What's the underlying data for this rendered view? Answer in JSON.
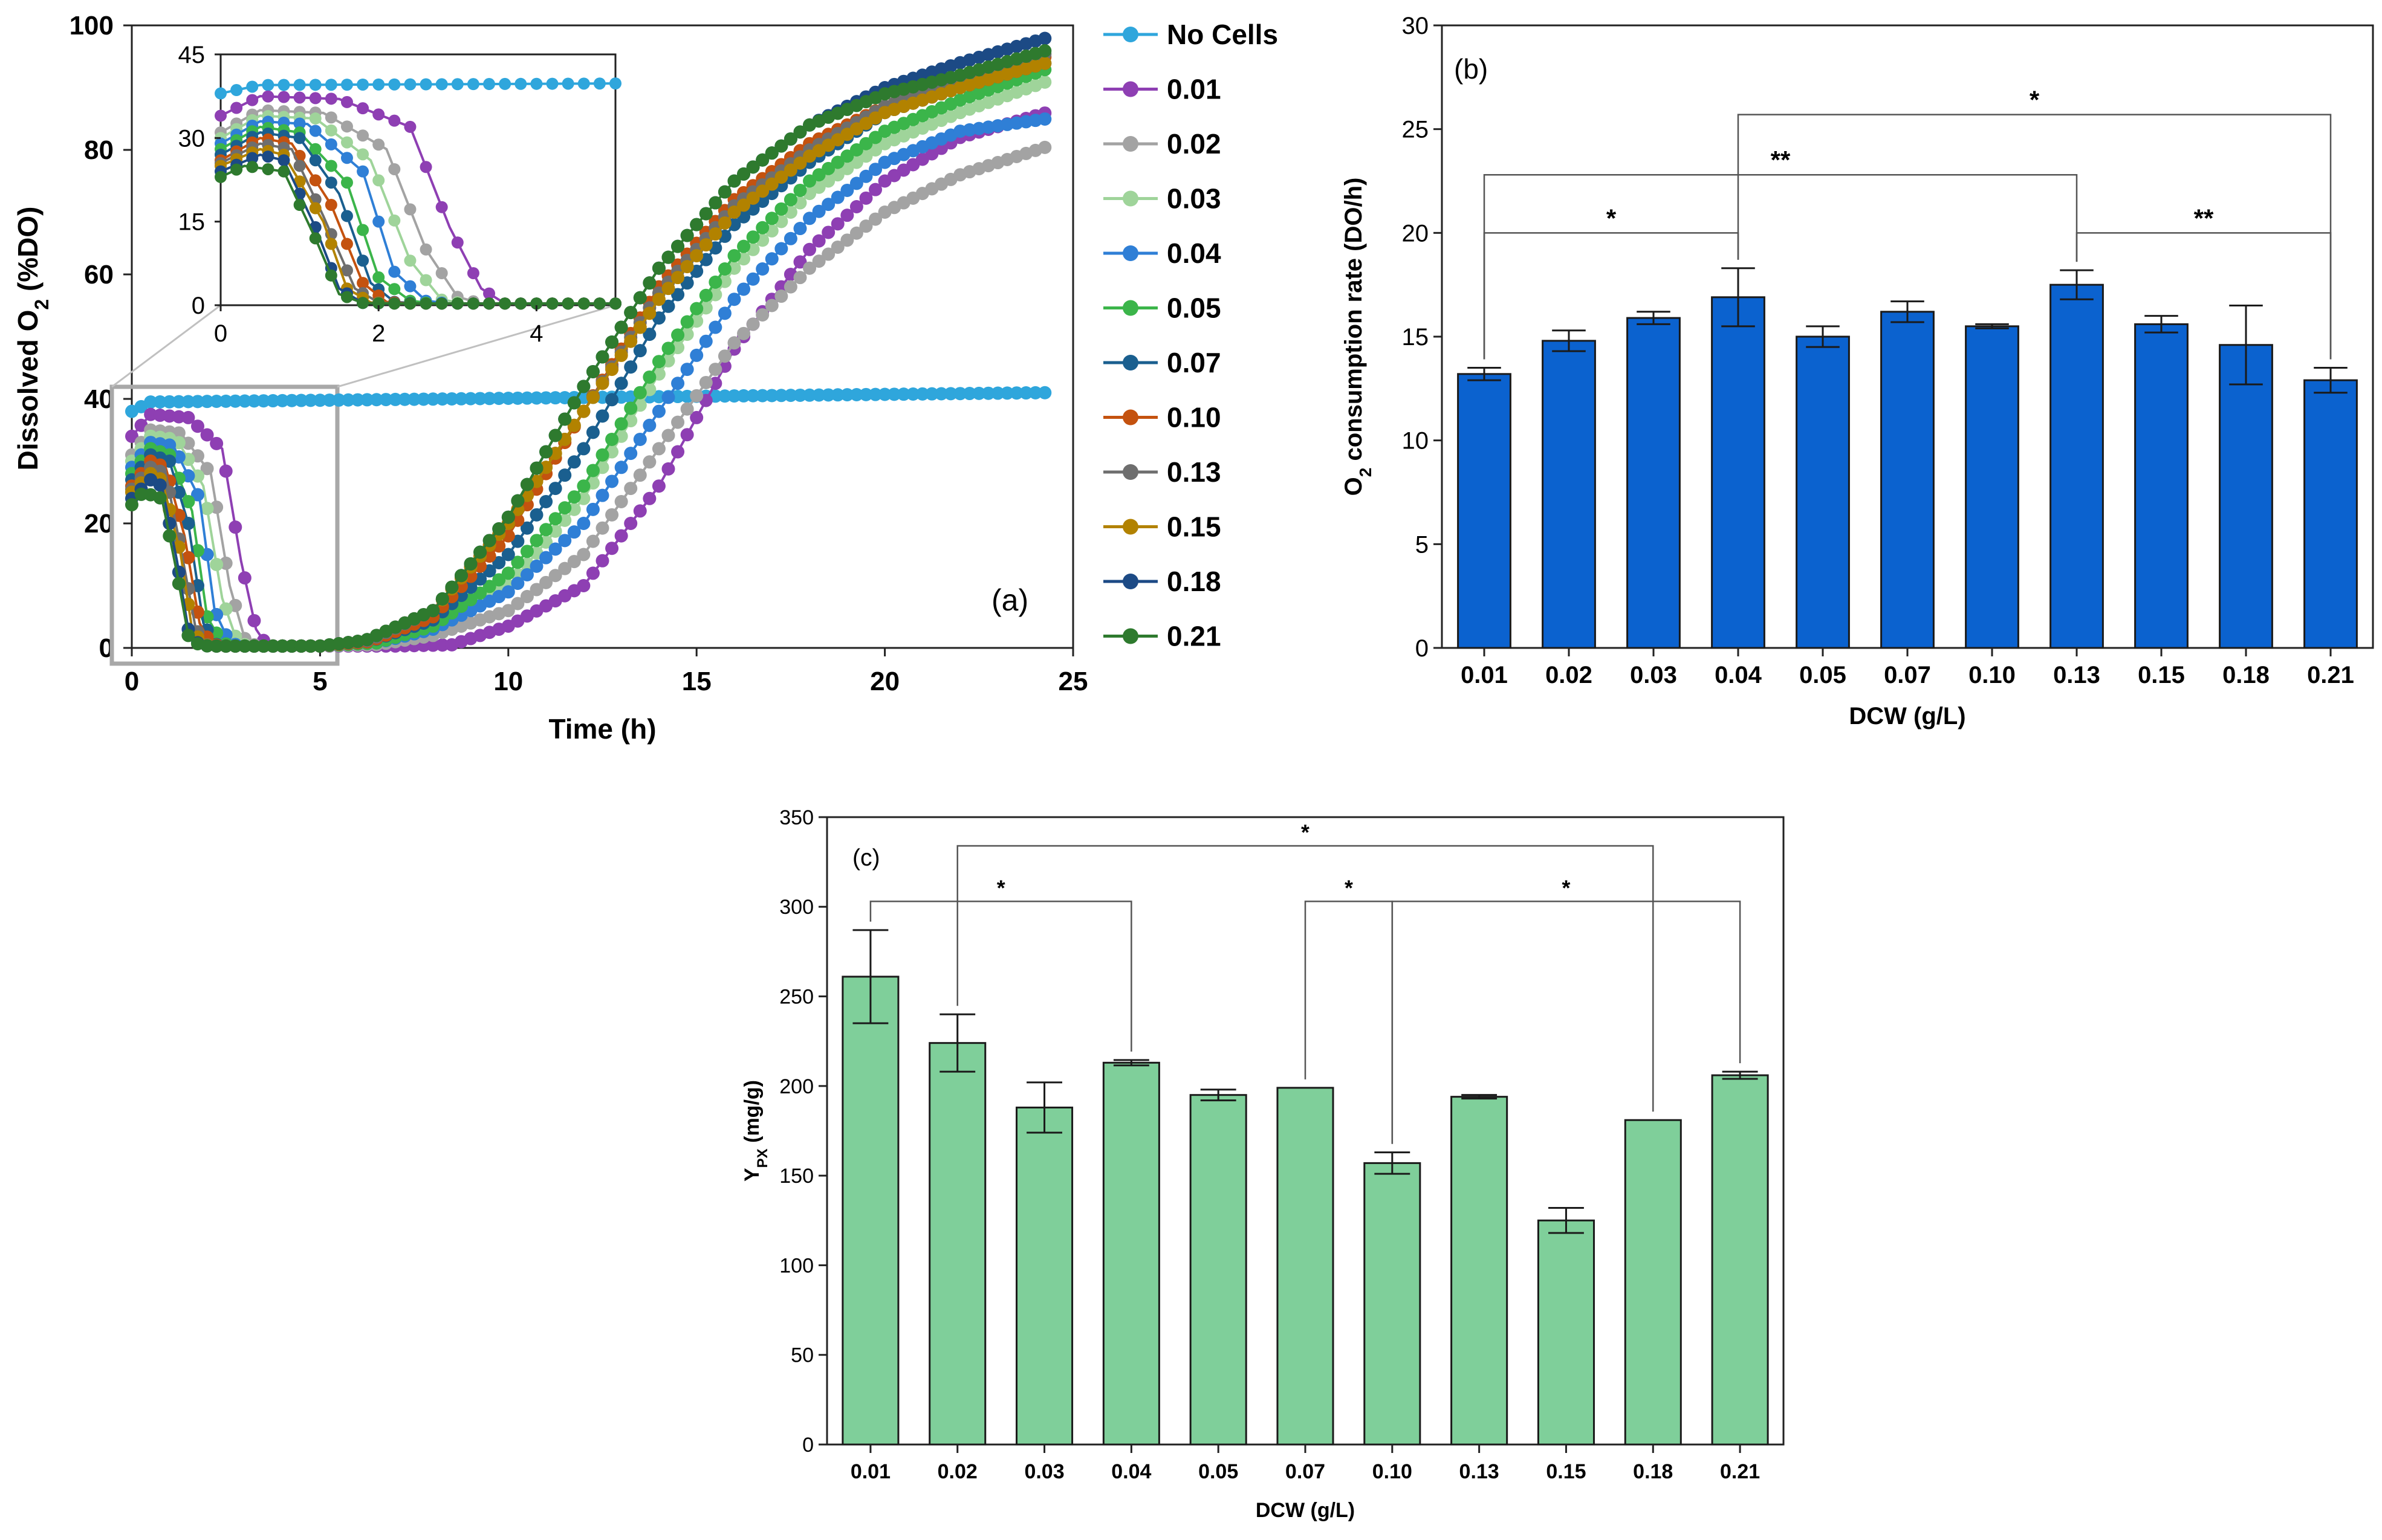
{
  "chart_data": [
    {
      "panel": "(a)",
      "type": "line",
      "xlabel": "Time (h)",
      "ylabel": "Dissolved O",
      "ylabel_sub": "2",
      "ylabel_tail": " (%DO)",
      "xlim": [
        0,
        25
      ],
      "ylim": [
        0,
        100
      ],
      "xticks": [
        0,
        5,
        10,
        15,
        20,
        25
      ],
      "yticks": [
        0,
        20,
        40,
        60,
        80,
        100
      ],
      "grid": false,
      "legend_position": "right",
      "series": [
        {
          "name": "No Cells",
          "color": "#2fa6dc",
          "points": [
            [
              0,
              38
            ],
            [
              0.5,
              39.5
            ],
            [
              24.3,
              41
            ]
          ]
        },
        {
          "name": "0.01",
          "color": "#8e3fb3",
          "points": [
            [
              0,
              34
            ],
            [
              0.5,
              37.5
            ],
            [
              1.5,
              37
            ],
            [
              2.4,
              32
            ],
            [
              2.9,
              14
            ],
            [
              3.3,
              3
            ],
            [
              3.6,
              0.3
            ],
            [
              5,
              0.3
            ],
            [
              7,
              0.3
            ],
            [
              8.5,
              0.5
            ],
            [
              10,
              3.5
            ],
            [
              12,
              10
            ],
            [
              14,
              26
            ],
            [
              16,
              48
            ],
            [
              18,
              64
            ],
            [
              20,
              75
            ],
            [
              22,
              82
            ],
            [
              24.3,
              86
            ]
          ]
        },
        {
          "name": "0.02",
          "color": "#a3a3a3",
          "points": [
            [
              0,
              31
            ],
            [
              0.5,
              35
            ],
            [
              1.3,
              34.5
            ],
            [
              2.1,
              28
            ],
            [
              2.6,
              10
            ],
            [
              3,
              1.5
            ],
            [
              3.3,
              0.3
            ],
            [
              5,
              0.3
            ],
            [
              6.5,
              0.5
            ],
            [
              8,
              2
            ],
            [
              10,
              6
            ],
            [
              12,
              15
            ],
            [
              14,
              32
            ],
            [
              16,
              49
            ],
            [
              18,
              61
            ],
            [
              20,
              70
            ],
            [
              22,
              76
            ],
            [
              24.3,
              80.5
            ]
          ]
        },
        {
          "name": "0.03",
          "color": "#9fd49a",
          "points": [
            [
              0,
              30
            ],
            [
              0.5,
              34
            ],
            [
              1.2,
              33.5
            ],
            [
              1.9,
              26
            ],
            [
              2.4,
              8
            ],
            [
              2.8,
              1
            ],
            [
              3.1,
              0.3
            ],
            [
              5,
              0.3
            ],
            [
              6.5,
              1
            ],
            [
              8,
              3
            ],
            [
              10,
              10
            ],
            [
              12,
              24
            ],
            [
              14,
              44
            ],
            [
              16,
              61
            ],
            [
              18,
              73
            ],
            [
              20,
              81
            ],
            [
              22,
              86
            ],
            [
              24.3,
              91
            ]
          ]
        },
        {
          "name": "0.04",
          "color": "#2f7fd6",
          "points": [
            [
              0,
              29
            ],
            [
              0.5,
              33
            ],
            [
              1.1,
              32.5
            ],
            [
              1.8,
              24
            ],
            [
              2.2,
              6
            ],
            [
              2.6,
              0.8
            ],
            [
              2.9,
              0.3
            ],
            [
              5,
              0.3
            ],
            [
              6.5,
              0.8
            ],
            [
              8,
              3
            ],
            [
              10,
              9
            ],
            [
              12,
              20
            ],
            [
              14,
              38
            ],
            [
              16,
              56
            ],
            [
              18,
              69
            ],
            [
              20,
              78
            ],
            [
              22,
              83
            ],
            [
              24.3,
              85
            ]
          ]
        },
        {
          "name": "0.05",
          "color": "#3bb54a",
          "points": [
            [
              0,
              28
            ],
            [
              0.5,
              32
            ],
            [
              1.0,
              31
            ],
            [
              1.6,
              22
            ],
            [
              2.0,
              5
            ],
            [
              2.4,
              0.8
            ],
            [
              2.7,
              0.3
            ],
            [
              5,
              0.3
            ],
            [
              6.5,
              0.8
            ],
            [
              8,
              3.5
            ],
            [
              10,
              12
            ],
            [
              12,
              26
            ],
            [
              14,
              46
            ],
            [
              16,
              63
            ],
            [
              18,
              75
            ],
            [
              20,
              83
            ],
            [
              22,
              88
            ],
            [
              24.3,
              93
            ]
          ]
        },
        {
          "name": "0.07",
          "color": "#1a5f8f",
          "points": [
            [
              0,
              27
            ],
            [
              0.5,
              31
            ],
            [
              1.0,
              30
            ],
            [
              1.5,
              20
            ],
            [
              1.9,
              4
            ],
            [
              2.2,
              0.6
            ],
            [
              2.5,
              0.3
            ],
            [
              5,
              0.3
            ],
            [
              6.3,
              1
            ],
            [
              8,
              4.5
            ],
            [
              10,
              15
            ],
            [
              12,
              32
            ],
            [
              14,
              53
            ],
            [
              16,
              68
            ],
            [
              18,
              78
            ],
            [
              20,
              86
            ],
            [
              22,
              90
            ],
            [
              24.3,
              94
            ]
          ]
        },
        {
          "name": "0.10",
          "color": "#c4520f",
          "points": [
            [
              0,
              26
            ],
            [
              0.5,
              30
            ],
            [
              0.9,
              29
            ],
            [
              1.4,
              18
            ],
            [
              1.8,
              4
            ],
            [
              2.1,
              0.6
            ],
            [
              2.4,
              0.3
            ],
            [
              5,
              0.3
            ],
            [
              6.3,
              1
            ],
            [
              8,
              5
            ],
            [
              10,
              18
            ],
            [
              12,
              38
            ],
            [
              14,
              58
            ],
            [
              16,
              72
            ],
            [
              18,
              81
            ],
            [
              20,
              87
            ],
            [
              22,
              91
            ],
            [
              24.3,
              95
            ]
          ]
        },
        {
          "name": "0.13",
          "color": "#6e6e6e",
          "points": [
            [
              0,
              25.5
            ],
            [
              0.5,
              29
            ],
            [
              0.9,
              28
            ],
            [
              1.3,
              16
            ],
            [
              1.7,
              3
            ],
            [
              2.0,
              0.5
            ],
            [
              2.3,
              0.3
            ],
            [
              5,
              0.3
            ],
            [
              6.3,
              1.2
            ],
            [
              8,
              6
            ],
            [
              10,
              20
            ],
            [
              12,
              38
            ],
            [
              14,
              57
            ],
            [
              16,
              71
            ],
            [
              18,
              80
            ],
            [
              20,
              87
            ],
            [
              22,
              91
            ],
            [
              24.3,
              95.5
            ]
          ]
        },
        {
          "name": "0.15",
          "color": "#b28200",
          "points": [
            [
              0,
              25
            ],
            [
              0.5,
              28
            ],
            [
              0.8,
              27
            ],
            [
              1.3,
              15
            ],
            [
              1.6,
              3
            ],
            [
              1.9,
              0.5
            ],
            [
              2.2,
              0.3
            ],
            [
              5,
              0.3
            ],
            [
              6.2,
              1.2
            ],
            [
              8,
              6
            ],
            [
              10,
              20
            ],
            [
              12,
              38
            ],
            [
              14,
              56
            ],
            [
              16,
              70
            ],
            [
              18,
              79
            ],
            [
              20,
              86
            ],
            [
              22,
              90
            ],
            [
              24.3,
              94
            ]
          ]
        },
        {
          "name": "0.18",
          "color": "#1c4a85",
          "points": [
            [
              0,
              24
            ],
            [
              0.5,
              27
            ],
            [
              0.8,
              26
            ],
            [
              1.2,
              14
            ],
            [
              1.5,
              3
            ],
            [
              1.8,
              0.4
            ],
            [
              2.1,
              0.3
            ],
            [
              5,
              0.3
            ],
            [
              6.2,
              1.2
            ],
            [
              8,
              6
            ],
            [
              10,
              21
            ],
            [
              12,
              42
            ],
            [
              14,
              61
            ],
            [
              16,
              75
            ],
            [
              18,
              84
            ],
            [
              20,
              90
            ],
            [
              22,
              94
            ],
            [
              24.3,
              98
            ]
          ]
        },
        {
          "name": "0.21",
          "color": "#2e7a2e",
          "points": [
            [
              0,
              23
            ],
            [
              0.3,
              25
            ],
            [
              0.8,
              24
            ],
            [
              1.2,
              12
            ],
            [
              1.5,
              2
            ],
            [
              1.8,
              0.4
            ],
            [
              2.1,
              0.3
            ],
            [
              5,
              0.3
            ],
            [
              6.2,
              1.2
            ],
            [
              8,
              6
            ],
            [
              10,
              21
            ],
            [
              12,
              42
            ],
            [
              14,
              61
            ],
            [
              16,
              75
            ],
            [
              18,
              84
            ],
            [
              20,
              89
            ],
            [
              22,
              92
            ],
            [
              24.3,
              96
            ]
          ]
        }
      ],
      "inset": {
        "xlim": [
          0,
          5
        ],
        "ylim": [
          0,
          45
        ],
        "xticks": [
          0,
          2,
          4
        ],
        "yticks": [
          0,
          15,
          30,
          45
        ]
      }
    },
    {
      "panel": "(b)",
      "type": "bar",
      "xlabel": "DCW (g/L)",
      "ylabel": "O",
      "ylabel_sub": "2",
      "ylabel_tail": " consumption rate (DO/h)",
      "ylim": [
        0,
        30
      ],
      "yticks": [
        0,
        5,
        10,
        15,
        20,
        25,
        30
      ],
      "bar_color": "#0b62cf",
      "categories": [
        "0.01",
        "0.02",
        "0.03",
        "0.04",
        "0.05",
        "0.07",
        "0.10",
        "0.13",
        "0.15",
        "0.18",
        "0.21"
      ],
      "values": [
        13.2,
        14.8,
        15.9,
        16.9,
        15.0,
        16.2,
        15.5,
        17.5,
        15.6,
        14.6,
        12.9
      ],
      "errors": [
        0.3,
        0.5,
        0.3,
        1.4,
        0.5,
        0.5,
        0.1,
        0.7,
        0.4,
        1.9,
        0.6
      ],
      "significance": [
        {
          "from": 0,
          "to": 3,
          "y": 20.0,
          "label": "*"
        },
        {
          "from": 0,
          "to": 7,
          "y": 22.8,
          "label": "**"
        },
        {
          "from": 3,
          "to": 10,
          "y": 25.7,
          "label": "*"
        },
        {
          "from": 7,
          "to": 10,
          "y": 20.0,
          "label": "**"
        }
      ]
    },
    {
      "panel": "(c)",
      "type": "bar",
      "xlabel": "DCW (g/L)",
      "ylabel": "Y",
      "ylabel_sub": "PX",
      "ylabel_tail": " (mg/g)",
      "ylim": [
        0,
        350
      ],
      "yticks": [
        0,
        50,
        100,
        150,
        200,
        250,
        300,
        350
      ],
      "bar_color": "#7fcf9a",
      "categories": [
        "0.01",
        "0.02",
        "0.03",
        "0.04",
        "0.05",
        "0.07",
        "0.10",
        "0.13",
        "0.15",
        "0.18",
        "0.21"
      ],
      "values": [
        261,
        224,
        188,
        213,
        195,
        199,
        157,
        194,
        125,
        181,
        206
      ],
      "errors": [
        26,
        16,
        14,
        1.5,
        3,
        0,
        6,
        1,
        7,
        0,
        2
      ],
      "significance": [
        {
          "from": 0,
          "to": 3,
          "y": 303,
          "label": "*"
        },
        {
          "from": 1,
          "to": 9,
          "y": 334,
          "label": "*"
        },
        {
          "from": 5,
          "to": 6,
          "y": 303,
          "label": "*"
        },
        {
          "from": 6,
          "to": 10,
          "y": 303,
          "label": "*"
        }
      ]
    }
  ]
}
